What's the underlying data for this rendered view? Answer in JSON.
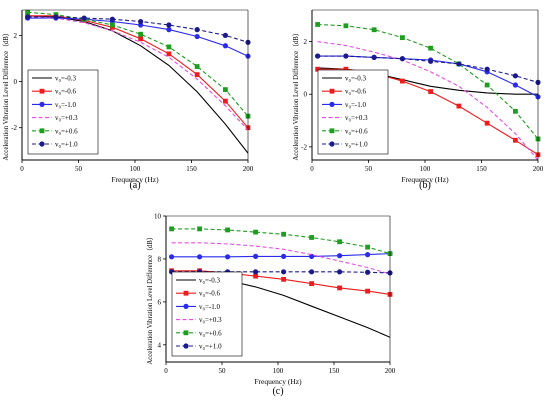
{
  "charts": [
    {
      "type": "line",
      "panel_label": "(a)",
      "xlabel": "Frequency (Hz)",
      "ylabel": "Acceleration Vibration Level Difference（dB）",
      "xlim": [
        0,
        200
      ],
      "ylim": [
        -3.4,
        3.1
      ],
      "x_ticks": [
        0,
        50,
        100,
        150,
        200
      ],
      "y_ticks": [
        -2,
        0,
        2
      ],
      "legend_placement": "bottom-left",
      "series": [
        {
          "name": "v₀=-0.3",
          "color": "#000000",
          "dash": "solid",
          "marker": "none",
          "x": [
            5,
            30,
            55,
            80,
            105,
            130,
            155,
            180,
            200
          ],
          "y": [
            2.85,
            2.8,
            2.6,
            2.2,
            1.55,
            0.7,
            -0.45,
            -1.85,
            -3.1
          ]
        },
        {
          "name": "v₀=-0.6",
          "color": "#ee1c1c",
          "dash": "solid",
          "marker": "square",
          "x": [
            5,
            30,
            55,
            80,
            105,
            130,
            155,
            180,
            200
          ],
          "y": [
            2.85,
            2.85,
            2.65,
            2.35,
            1.85,
            1.2,
            0.3,
            -0.85,
            -2.0
          ]
        },
        {
          "name": "v₀=-1.0",
          "color": "#2b2bee",
          "dash": "solid",
          "marker": "circle",
          "x": [
            5,
            30,
            55,
            80,
            105,
            130,
            155,
            180,
            200
          ],
          "y": [
            2.75,
            2.75,
            2.7,
            2.6,
            2.45,
            2.25,
            1.95,
            1.55,
            1.1
          ]
        },
        {
          "name": "v₀=+0.3",
          "color": "#e64ce6",
          "dash": "dash",
          "marker": "none",
          "x": [
            5,
            30,
            55,
            80,
            105,
            130,
            155,
            180,
            200
          ],
          "y": [
            2.8,
            2.75,
            2.55,
            2.2,
            1.7,
            1.05,
            0.1,
            -1.05,
            -2.1
          ]
        },
        {
          "name": "v₀=+0.6",
          "color": "#1e9e1e",
          "dash": "dash",
          "marker": "square",
          "x": [
            5,
            30,
            55,
            80,
            105,
            130,
            155,
            180,
            200
          ],
          "y": [
            3.0,
            2.9,
            2.7,
            2.45,
            2.05,
            1.5,
            0.65,
            -0.35,
            -1.5
          ]
        },
        {
          "name": "v₀=+1.0",
          "color": "#1a1a8c",
          "dash": "dash",
          "marker": "circle",
          "x": [
            5,
            30,
            55,
            80,
            105,
            130,
            155,
            180,
            200
          ],
          "y": [
            2.8,
            2.8,
            2.75,
            2.7,
            2.6,
            2.45,
            2.25,
            2.0,
            1.7
          ]
        }
      ]
    },
    {
      "type": "line",
      "panel_label": "(b)",
      "xlabel": "Frequency (Hz)",
      "ylabel": "Acceleration Vibration Level Difference（dB）",
      "xlim": [
        0,
        200
      ],
      "ylim": [
        -2.5,
        3.2
      ],
      "x_ticks": [
        0,
        50,
        100,
        150,
        200
      ],
      "y_ticks": [
        -2,
        0,
        2
      ],
      "legend_placement": "bottom-left",
      "series": [
        {
          "name": "v₀=-0.3",
          "color": "#000000",
          "dash": "solid",
          "marker": "none",
          "x": [
            5,
            30,
            55,
            80,
            105,
            130,
            155,
            180,
            200
          ],
          "y": [
            1.0,
            0.95,
            0.8,
            0.55,
            0.3,
            0.15,
            0.05,
            0.0,
            0.0
          ]
        },
        {
          "name": "v₀=-0.6",
          "color": "#ee1c1c",
          "dash": "solid",
          "marker": "square",
          "x": [
            5,
            30,
            55,
            80,
            105,
            130,
            155,
            180,
            200
          ],
          "y": [
            0.95,
            0.95,
            0.8,
            0.5,
            0.1,
            -0.45,
            -1.1,
            -1.75,
            -2.3
          ]
        },
        {
          "name": "v₀=-1.0",
          "color": "#2b2bee",
          "dash": "solid",
          "marker": "circle",
          "x": [
            5,
            30,
            55,
            80,
            105,
            130,
            155,
            180,
            200
          ],
          "y": [
            1.45,
            1.45,
            1.4,
            1.35,
            1.3,
            1.15,
            0.85,
            0.35,
            -0.1
          ]
        },
        {
          "name": "v₀=+0.3",
          "color": "#e64ce6",
          "dash": "dash",
          "marker": "none",
          "x": [
            5,
            30,
            55,
            80,
            105,
            130,
            155,
            180,
            200
          ],
          "y": [
            2.0,
            1.85,
            1.6,
            1.3,
            0.85,
            0.3,
            -0.5,
            -1.5,
            -2.5
          ]
        },
        {
          "name": "v₀=+0.6",
          "color": "#1e9e1e",
          "dash": "dash",
          "marker": "square",
          "x": [
            5,
            30,
            55,
            80,
            105,
            130,
            155,
            180,
            200
          ],
          "y": [
            2.65,
            2.6,
            2.45,
            2.15,
            1.75,
            1.15,
            0.35,
            -0.65,
            -1.7
          ]
        },
        {
          "name": "v₀=+1.0",
          "color": "#1a1a8c",
          "dash": "dash",
          "marker": "circle",
          "x": [
            5,
            30,
            55,
            80,
            105,
            130,
            155,
            180,
            200
          ],
          "y": [
            1.45,
            1.45,
            1.4,
            1.35,
            1.25,
            1.15,
            0.95,
            0.7,
            0.45
          ]
        }
      ]
    },
    {
      "type": "line",
      "panel_label": "(c)",
      "xlabel": "Frequency (Hz)",
      "ylabel": "Acceleration Vibration Level Difference（dB）",
      "xlim": [
        0,
        200
      ],
      "ylim": [
        3.2,
        10.0
      ],
      "x_ticks": [
        0,
        50,
        100,
        150,
        200
      ],
      "y_ticks": [
        4,
        6,
        8,
        10
      ],
      "legend_placement": "bottom-left",
      "series": [
        {
          "name": "v₀=-0.3",
          "color": "#000000",
          "dash": "solid",
          "marker": "none",
          "x": [
            5,
            30,
            55,
            80,
            105,
            130,
            155,
            180,
            200
          ],
          "y": [
            7.3,
            7.2,
            7.0,
            6.7,
            6.3,
            5.8,
            5.3,
            4.8,
            4.35
          ]
        },
        {
          "name": "v₀=-0.6",
          "color": "#ee1c1c",
          "dash": "solid",
          "marker": "square",
          "x": [
            5,
            30,
            55,
            80,
            105,
            130,
            155,
            180,
            200
          ],
          "y": [
            7.45,
            7.45,
            7.35,
            7.2,
            7.05,
            6.85,
            6.65,
            6.5,
            6.35
          ]
        },
        {
          "name": "v₀=-1.0",
          "color": "#2b2bee",
          "dash": "solid",
          "marker": "circle",
          "x": [
            5,
            30,
            55,
            80,
            105,
            130,
            155,
            180,
            200
          ],
          "y": [
            8.1,
            8.1,
            8.1,
            8.12,
            8.12,
            8.12,
            8.15,
            8.2,
            8.25
          ]
        },
        {
          "name": "v₀=+0.3",
          "color": "#e64ce6",
          "dash": "dash",
          "marker": "none",
          "x": [
            5,
            30,
            55,
            80,
            105,
            130,
            155,
            180,
            200
          ],
          "y": [
            8.75,
            8.75,
            8.7,
            8.6,
            8.45,
            8.2,
            7.9,
            7.6,
            7.3
          ]
        },
        {
          "name": "v₀=+0.6",
          "color": "#1e9e1e",
          "dash": "dash",
          "marker": "square",
          "x": [
            5,
            30,
            55,
            80,
            105,
            130,
            155,
            180,
            200
          ],
          "y": [
            9.4,
            9.4,
            9.35,
            9.25,
            9.15,
            9.0,
            8.8,
            8.55,
            8.25
          ]
        },
        {
          "name": "v₀=+1.0",
          "color": "#1a1a8c",
          "dash": "dash",
          "marker": "circle",
          "x": [
            5,
            30,
            55,
            80,
            105,
            130,
            155,
            180,
            200
          ],
          "y": [
            7.4,
            7.4,
            7.4,
            7.4,
            7.4,
            7.4,
            7.4,
            7.38,
            7.35
          ]
        }
      ]
    }
  ]
}
